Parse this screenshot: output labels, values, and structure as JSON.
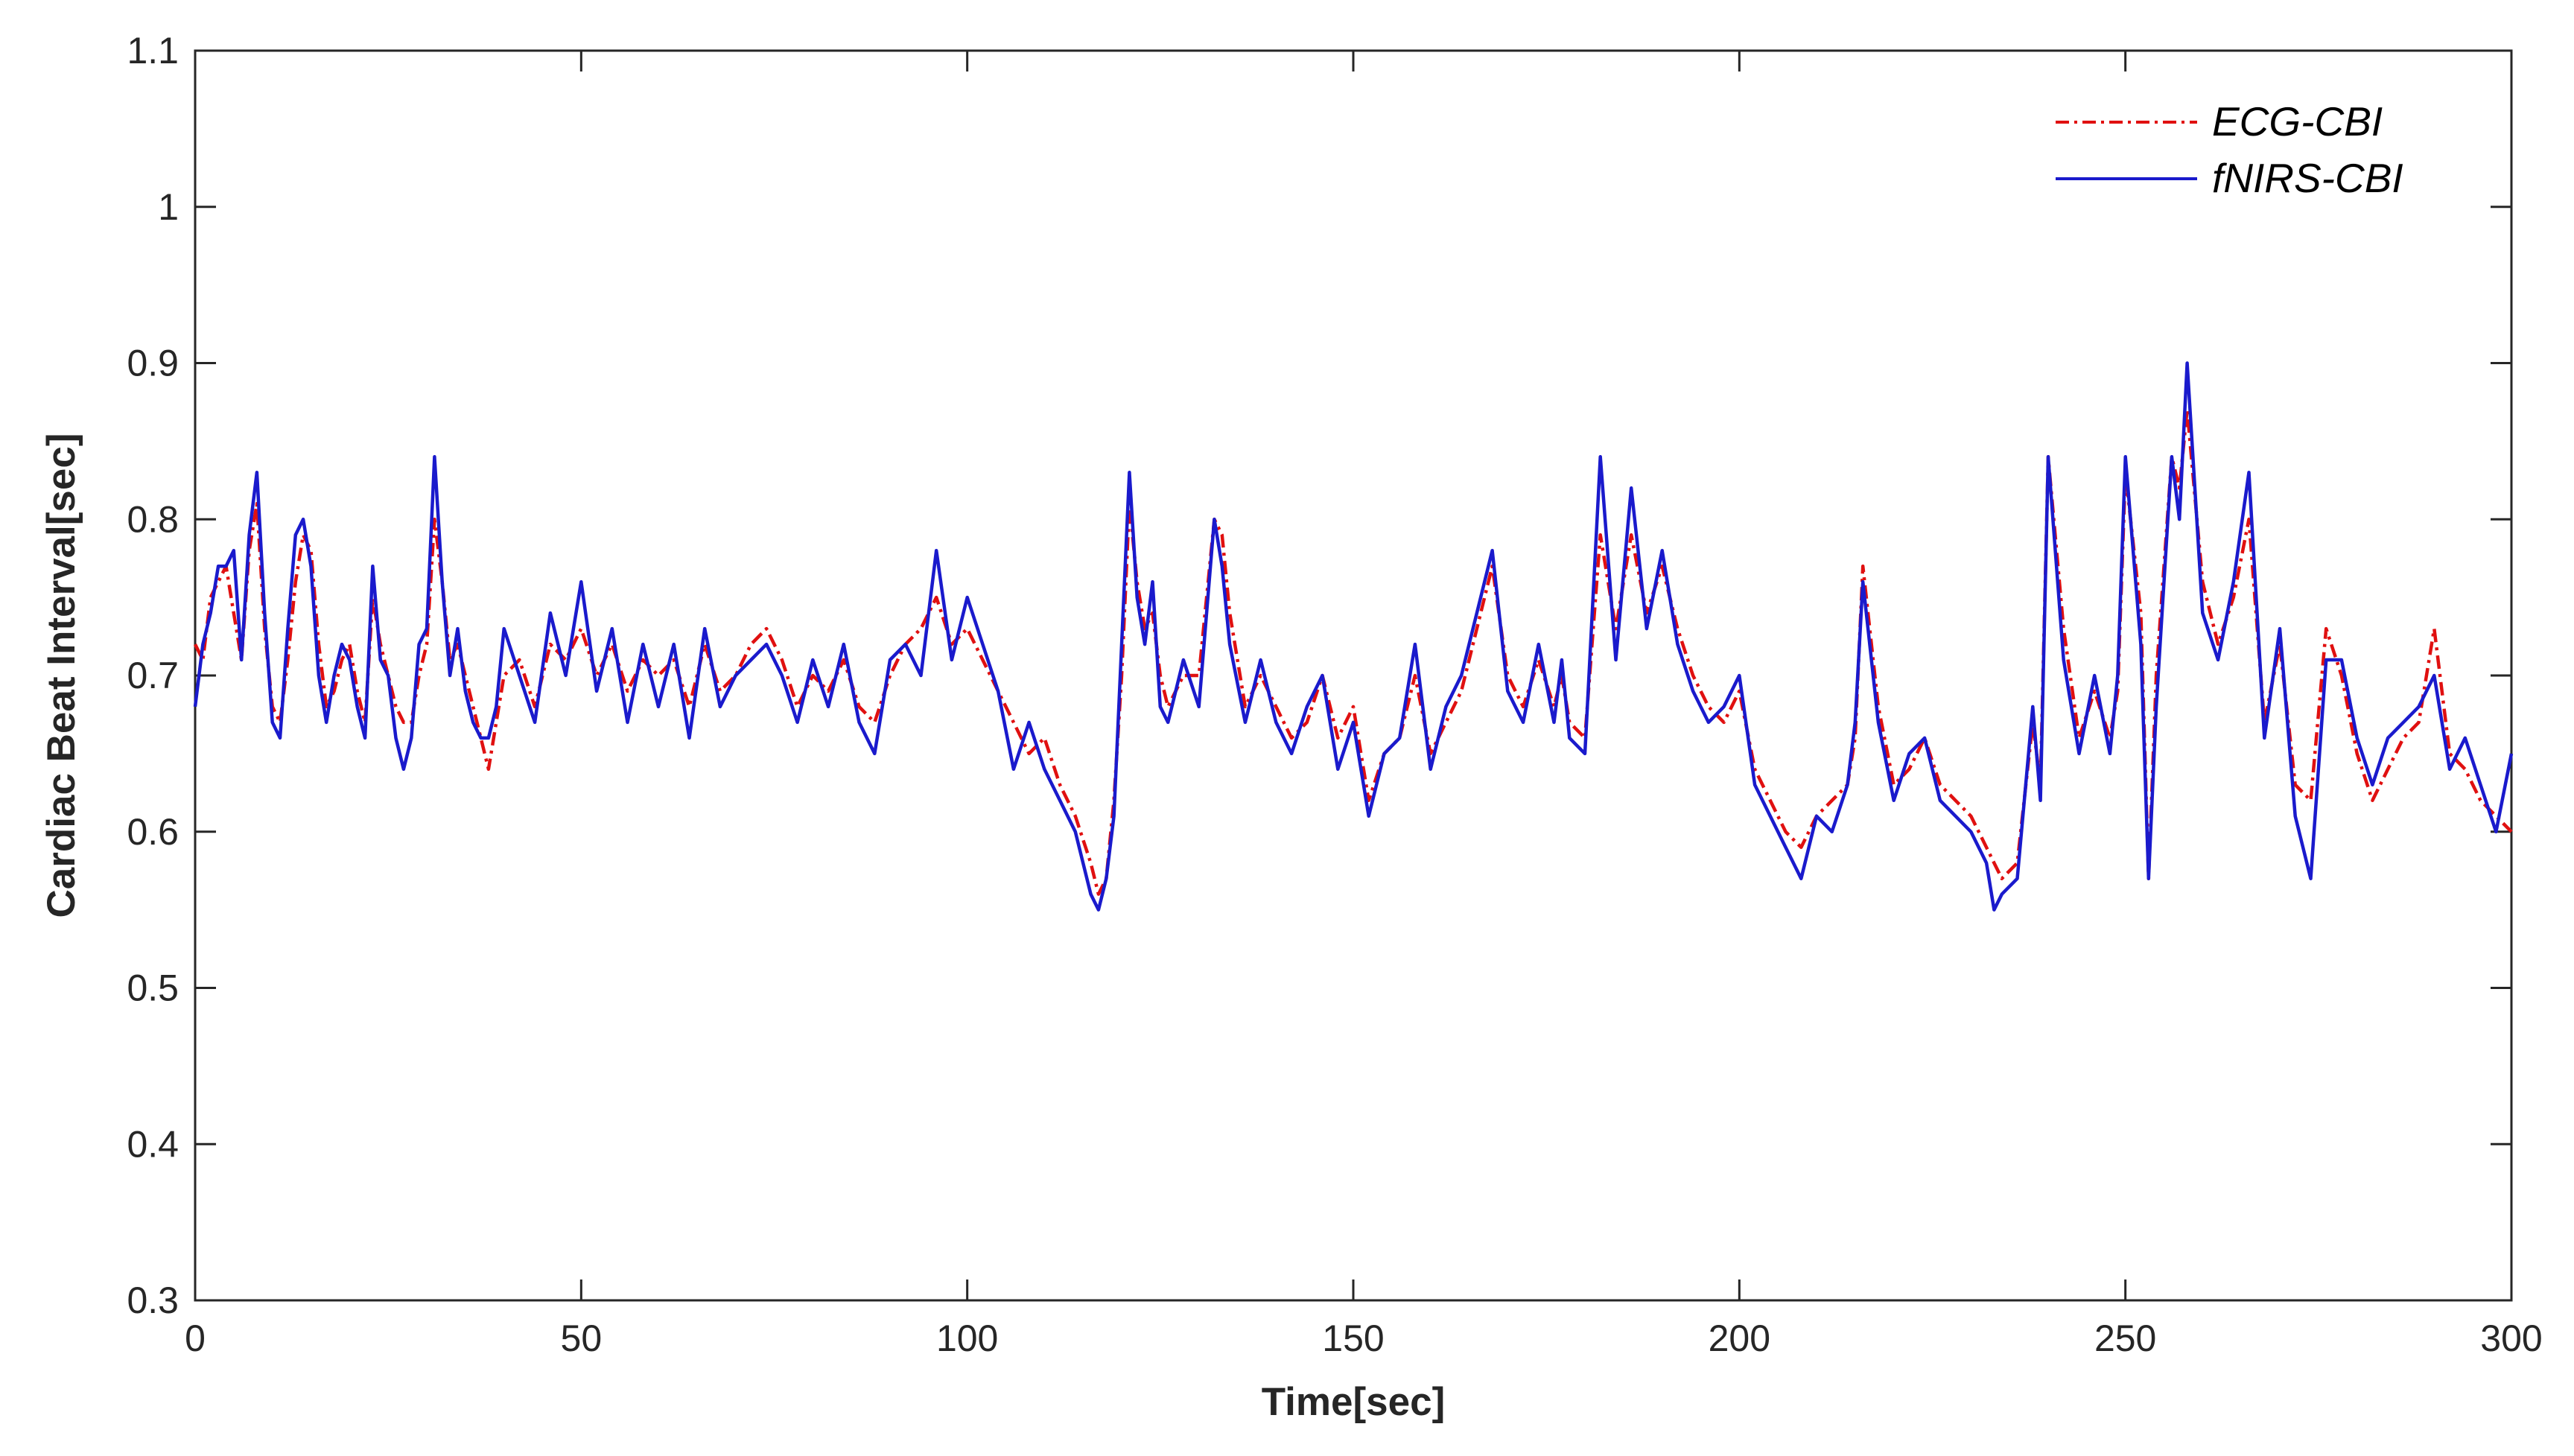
{
  "chart_data": {
    "type": "line",
    "title": "",
    "xlabel": "Time[sec]",
    "ylabel": "Cardiac Beat Interval[sec]",
    "xlim": [
      0,
      300
    ],
    "ylim": [
      0.3,
      1.1
    ],
    "xticks": [
      0,
      50,
      100,
      150,
      200,
      250,
      300
    ],
    "xtick_labels": [
      "0",
      "50",
      "100",
      "150",
      "200",
      "250",
      "300"
    ],
    "yticks": [
      0.3,
      0.4,
      0.5,
      0.6,
      0.7,
      0.8,
      0.9,
      1.0,
      1.1
    ],
    "ytick_labels": [
      "0.3",
      "0.4",
      "0.5",
      "0.6",
      "0.7",
      "0.8",
      "0.9",
      "1",
      "1.1"
    ],
    "grid": false,
    "legend_position": "top-right",
    "series": [
      {
        "name": "ECG-CBI",
        "color": "#e01010",
        "style": "dash-dot",
        "x": [
          0,
          1,
          2,
          3,
          4,
          5,
          6,
          7,
          8,
          9,
          10,
          11,
          12,
          13,
          14,
          15,
          16,
          17,
          18,
          19,
          20,
          21,
          22,
          23,
          24,
          25,
          26,
          27,
          28,
          29,
          30,
          31,
          32,
          33,
          34,
          35,
          36,
          37,
          38,
          39,
          40,
          42,
          44,
          46,
          48,
          50,
          52,
          54,
          56,
          58,
          60,
          62,
          64,
          66,
          68,
          70,
          72,
          74,
          76,
          78,
          80,
          82,
          84,
          86,
          88,
          90,
          92,
          94,
          96,
          98,
          100,
          102,
          104,
          106,
          108,
          110,
          112,
          114,
          116,
          117,
          118,
          119,
          120,
          121,
          122,
          123,
          124,
          125,
          126,
          128,
          130,
          132,
          133,
          134,
          136,
          138,
          140,
          142,
          144,
          146,
          148,
          150,
          152,
          154,
          156,
          158,
          160,
          162,
          164,
          166,
          168,
          170,
          172,
          174,
          176,
          177,
          178,
          180,
          182,
          184,
          186,
          188,
          190,
          192,
          194,
          196,
          198,
          200,
          202,
          204,
          206,
          208,
          210,
          212,
          214,
          215,
          216,
          218,
          220,
          222,
          224,
          226,
          228,
          230,
          232,
          233,
          234,
          236,
          238,
          239,
          240,
          242,
          244,
          246,
          248,
          249,
          250,
          252,
          253,
          254,
          256,
          257,
          258,
          260,
          262,
          264,
          266,
          268,
          270,
          272,
          274,
          276,
          278,
          280,
          282,
          284,
          286,
          288,
          290,
          292,
          294,
          296,
          298,
          300
        ],
        "values": [
          0.72,
          0.71,
          0.75,
          0.76,
          0.77,
          0.74,
          0.71,
          0.78,
          0.81,
          0.73,
          0.68,
          0.67,
          0.71,
          0.76,
          0.79,
          0.78,
          0.72,
          0.68,
          0.69,
          0.71,
          0.72,
          0.69,
          0.67,
          0.75,
          0.72,
          0.7,
          0.68,
          0.67,
          0.67,
          0.7,
          0.72,
          0.8,
          0.76,
          0.71,
          0.72,
          0.7,
          0.68,
          0.66,
          0.64,
          0.67,
          0.7,
          0.71,
          0.68,
          0.72,
          0.71,
          0.73,
          0.7,
          0.72,
          0.69,
          0.71,
          0.7,
          0.71,
          0.68,
          0.72,
          0.69,
          0.7,
          0.72,
          0.73,
          0.71,
          0.68,
          0.7,
          0.69,
          0.71,
          0.68,
          0.67,
          0.7,
          0.72,
          0.73,
          0.75,
          0.72,
          0.73,
          0.71,
          0.69,
          0.67,
          0.65,
          0.66,
          0.63,
          0.61,
          0.58,
          0.56,
          0.57,
          0.62,
          0.7,
          0.81,
          0.76,
          0.73,
          0.74,
          0.7,
          0.68,
          0.7,
          0.7,
          0.8,
          0.79,
          0.74,
          0.68,
          0.7,
          0.68,
          0.66,
          0.67,
          0.7,
          0.66,
          0.68,
          0.62,
          0.65,
          0.66,
          0.7,
          0.65,
          0.67,
          0.69,
          0.73,
          0.77,
          0.7,
          0.68,
          0.71,
          0.68,
          0.7,
          0.67,
          0.66,
          0.79,
          0.73,
          0.79,
          0.74,
          0.77,
          0.73,
          0.7,
          0.68,
          0.67,
          0.69,
          0.64,
          0.62,
          0.6,
          0.59,
          0.61,
          0.62,
          0.63,
          0.66,
          0.77,
          0.68,
          0.63,
          0.64,
          0.66,
          0.63,
          0.62,
          0.61,
          0.59,
          0.58,
          0.57,
          0.58,
          0.67,
          0.63,
          0.84,
          0.73,
          0.66,
          0.69,
          0.66,
          0.69,
          0.83,
          0.74,
          0.57,
          0.7,
          0.84,
          0.82,
          0.87,
          0.76,
          0.72,
          0.75,
          0.8,
          0.67,
          0.72,
          0.63,
          0.62,
          0.73,
          0.7,
          0.65,
          0.62,
          0.64,
          0.66,
          0.67,
          0.73,
          0.65,
          0.64,
          0.62,
          0.61,
          0.6
        ],
        "value_note": ""
      },
      {
        "name": "fNIRS-CBI",
        "color": "#1a1acc",
        "style": "solid",
        "x": [
          0,
          1,
          2,
          3,
          4,
          5,
          6,
          7,
          8,
          9,
          10,
          11,
          12,
          13,
          14,
          15,
          16,
          17,
          18,
          19,
          20,
          21,
          22,
          23,
          24,
          25,
          26,
          27,
          28,
          29,
          30,
          31,
          32,
          33,
          34,
          35,
          36,
          37,
          38,
          39,
          40,
          42,
          44,
          46,
          48,
          50,
          52,
          54,
          56,
          58,
          60,
          62,
          64,
          66,
          68,
          70,
          72,
          74,
          76,
          78,
          80,
          82,
          84,
          86,
          88,
          90,
          92,
          94,
          96,
          98,
          100,
          102,
          104,
          106,
          108,
          110,
          112,
          114,
          116,
          117,
          118,
          119,
          120,
          121,
          122,
          123,
          124,
          125,
          126,
          128,
          130,
          132,
          133,
          134,
          136,
          138,
          140,
          142,
          144,
          146,
          148,
          150,
          152,
          154,
          156,
          158,
          160,
          162,
          164,
          166,
          168,
          170,
          172,
          174,
          176,
          177,
          178,
          180,
          182,
          184,
          186,
          188,
          190,
          192,
          194,
          196,
          198,
          200,
          202,
          204,
          206,
          208,
          210,
          212,
          214,
          215,
          216,
          218,
          220,
          222,
          224,
          226,
          228,
          230,
          232,
          233,
          234,
          236,
          238,
          239,
          240,
          242,
          244,
          246,
          248,
          249,
          250,
          252,
          253,
          254,
          256,
          257,
          258,
          260,
          262,
          264,
          266,
          268,
          270,
          272,
          274,
          276,
          278,
          280,
          282,
          284,
          286,
          288,
          290,
          292,
          294,
          296,
          298,
          300
        ],
        "values": [
          0.68,
          0.72,
          0.74,
          0.77,
          0.77,
          0.78,
          0.71,
          0.79,
          0.83,
          0.74,
          0.67,
          0.66,
          0.73,
          0.79,
          0.8,
          0.77,
          0.7,
          0.67,
          0.7,
          0.72,
          0.71,
          0.68,
          0.66,
          0.77,
          0.71,
          0.7,
          0.66,
          0.64,
          0.66,
          0.72,
          0.73,
          0.84,
          0.76,
          0.7,
          0.73,
          0.69,
          0.67,
          0.66,
          0.66,
          0.68,
          0.73,
          0.7,
          0.67,
          0.74,
          0.7,
          0.76,
          0.69,
          0.73,
          0.67,
          0.72,
          0.68,
          0.72,
          0.66,
          0.73,
          0.68,
          0.7,
          0.71,
          0.72,
          0.7,
          0.67,
          0.71,
          0.68,
          0.72,
          0.67,
          0.65,
          0.71,
          0.72,
          0.7,
          0.78,
          0.71,
          0.75,
          0.72,
          0.69,
          0.64,
          0.67,
          0.64,
          0.62,
          0.6,
          0.56,
          0.55,
          0.57,
          0.61,
          0.72,
          0.83,
          0.75,
          0.72,
          0.76,
          0.68,
          0.67,
          0.71,
          0.68,
          0.8,
          0.77,
          0.72,
          0.67,
          0.71,
          0.67,
          0.65,
          0.68,
          0.7,
          0.64,
          0.67,
          0.61,
          0.65,
          0.66,
          0.72,
          0.64,
          0.68,
          0.7,
          0.74,
          0.78,
          0.69,
          0.67,
          0.72,
          0.67,
          0.71,
          0.66,
          0.65,
          0.84,
          0.71,
          0.82,
          0.73,
          0.78,
          0.72,
          0.69,
          0.67,
          0.68,
          0.7,
          0.63,
          0.61,
          0.59,
          0.57,
          0.61,
          0.6,
          0.63,
          0.67,
          0.76,
          0.67,
          0.62,
          0.65,
          0.66,
          0.62,
          0.61,
          0.6,
          0.58,
          0.55,
          0.56,
          0.57,
          0.68,
          0.62,
          0.84,
          0.71,
          0.65,
          0.7,
          0.65,
          0.7,
          0.84,
          0.72,
          0.57,
          0.68,
          0.84,
          0.8,
          0.9,
          0.74,
          0.71,
          0.76,
          0.83,
          0.66,
          0.73,
          0.61,
          0.57,
          0.71,
          0.71,
          0.66,
          0.63,
          0.66,
          0.67,
          0.68,
          0.7,
          0.64,
          0.66,
          0.63,
          0.6,
          0.65
        ]
      }
    ]
  }
}
